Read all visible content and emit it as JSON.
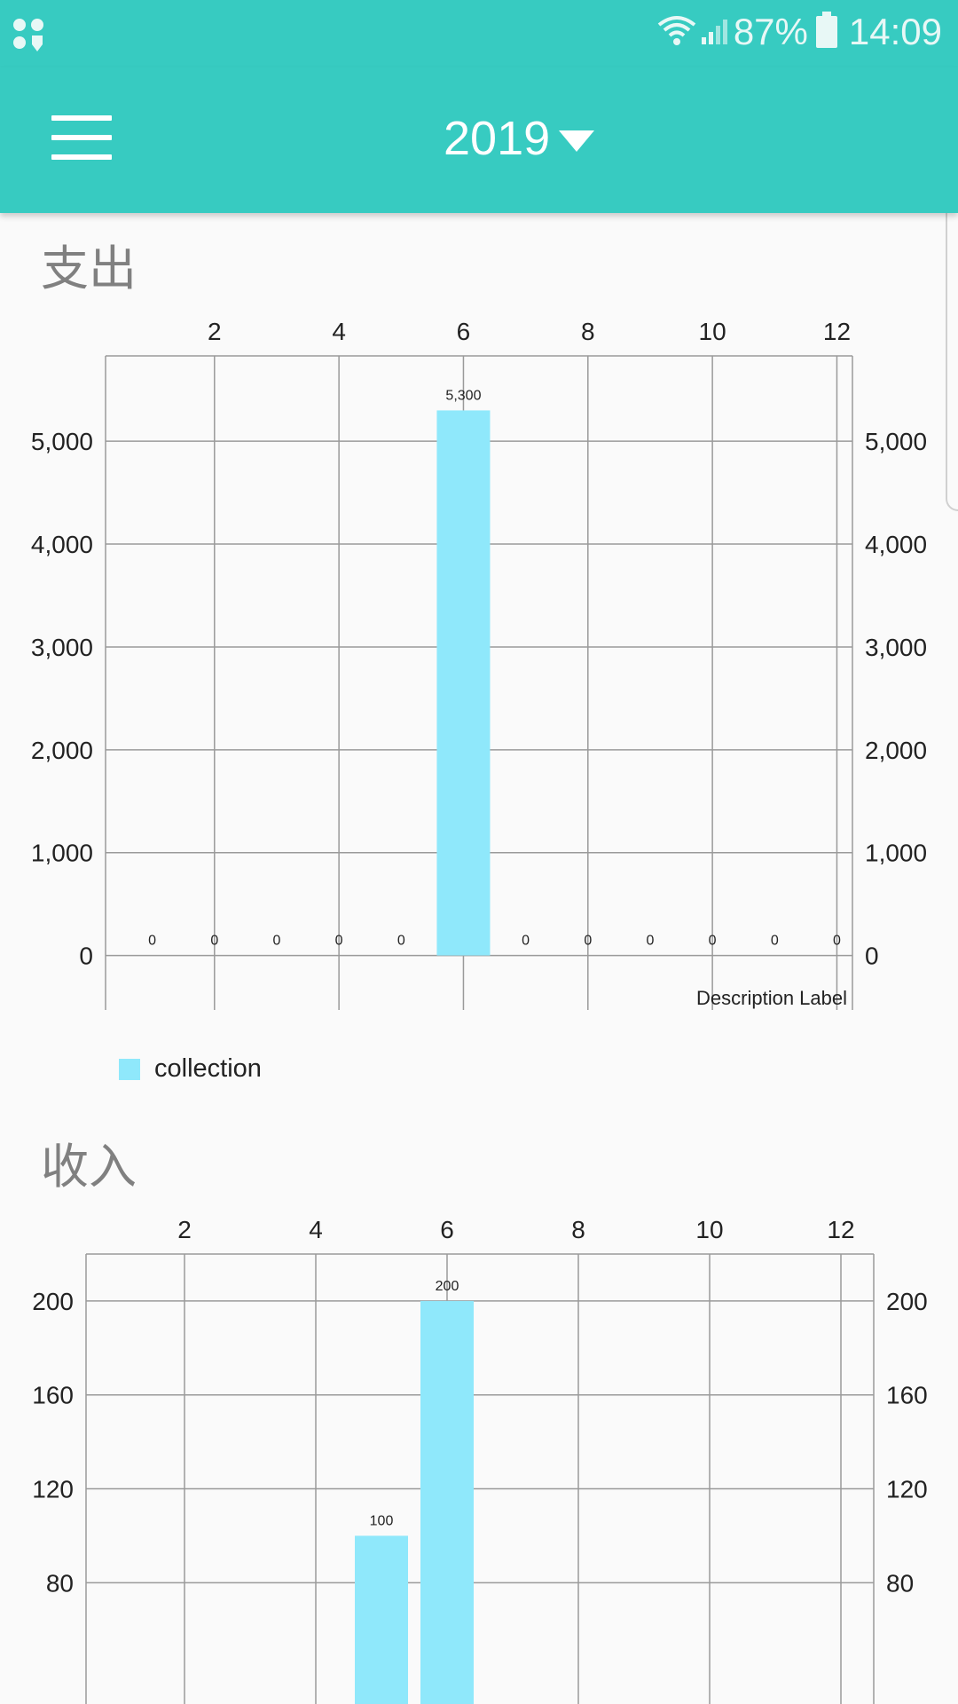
{
  "status_bar": {
    "battery_percent": "87%",
    "time": "14:09",
    "icons": [
      "app-grid-icon",
      "wifi-icon",
      "signal-icon",
      "battery-icon"
    ]
  },
  "app_bar": {
    "menu_icon": "hamburger-menu-icon",
    "year": "2019",
    "dropdown_icon": "caret-down-icon"
  },
  "colors": {
    "accent": "#37cbc1",
    "bar": "#8fe8fb",
    "grid": "#9a9a9a"
  },
  "expense": {
    "title": "支出",
    "description_label": "Description Label",
    "legend_label": "collection"
  },
  "income": {
    "title": "收入"
  },
  "chart_data": [
    {
      "type": "bar",
      "title": "支出",
      "x": [
        1,
        2,
        3,
        4,
        5,
        6,
        7,
        8,
        9,
        10,
        11,
        12
      ],
      "values": [
        0,
        0,
        0,
        0,
        0,
        5300,
        0,
        0,
        0,
        0,
        0,
        0
      ],
      "value_labels": [
        "0",
        "0",
        "0",
        "0",
        "0",
        "5,300",
        "0",
        "0",
        "0",
        "0",
        "0",
        "0"
      ],
      "x_ticks": [
        "2",
        "4",
        "6",
        "8",
        "10",
        "12"
      ],
      "x_tick_values": [
        2,
        4,
        6,
        8,
        10,
        12
      ],
      "y_ticks": [
        "0",
        "1,000",
        "2,000",
        "3,000",
        "4,000",
        "5,000"
      ],
      "y_tick_values": [
        0,
        1000,
        2000,
        3000,
        4000,
        5000
      ],
      "xlim": [
        0.25,
        12.25
      ],
      "ylim": [
        -530,
        5830
      ],
      "series": [
        {
          "name": "collection"
        }
      ],
      "legend": "bottom-left",
      "grid": true
    },
    {
      "type": "bar",
      "title": "收入",
      "x": [
        5,
        6
      ],
      "values": [
        100,
        200
      ],
      "value_labels": [
        "100",
        "200"
      ],
      "x_ticks": [
        "2",
        "4",
        "6",
        "8",
        "10",
        "12"
      ],
      "x_tick_values": [
        2,
        4,
        6,
        8,
        10,
        12
      ],
      "y_ticks": [
        "80",
        "120",
        "160",
        "200"
      ],
      "y_tick_values": [
        80,
        120,
        160,
        200
      ],
      "xlim": [
        0.5,
        12.5
      ],
      "ylim": [
        0,
        220
      ],
      "grid": true
    }
  ]
}
